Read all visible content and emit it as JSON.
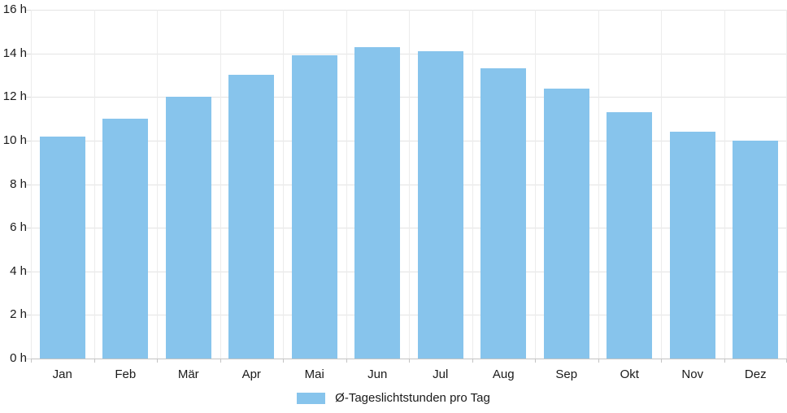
{
  "chart_data": {
    "type": "bar",
    "title": "",
    "xlabel": "",
    "ylabel": "",
    "categories": [
      "Jan",
      "Feb",
      "Mär",
      "Apr",
      "Mai",
      "Jun",
      "Jul",
      "Aug",
      "Sep",
      "Okt",
      "Nov",
      "Dez"
    ],
    "values": [
      10.2,
      11,
      12,
      13,
      13.9,
      14.3,
      14.1,
      13.3,
      12.4,
      11.3,
      10.4,
      10
    ],
    "series_name": "Ø-Tageslichtstunden pro Tag",
    "y_ticks": [
      "0 h",
      "2 h",
      "4 h",
      "6 h",
      "8 h",
      "10 h",
      "12 h",
      "14 h",
      "16 h"
    ],
    "ylim": [
      0,
      16
    ],
    "y_step": 2,
    "grid": true,
    "legend_position": "bottom",
    "bar_color": "#87C4EC"
  },
  "legend": {
    "label": "Ø-Tageslichtstunden pro Tag"
  }
}
